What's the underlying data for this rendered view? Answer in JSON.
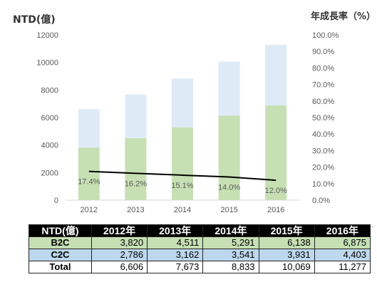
{
  "title_left": "NTD(億)",
  "title_right": "年成長率（%）",
  "chart_data": {
    "type": "bar",
    "stacked": true,
    "categories": [
      "2012",
      "2013",
      "2014",
      "2015",
      "2016"
    ],
    "series": [
      {
        "name": "B2C",
        "values": [
          3820,
          4511,
          5291,
          6138,
          6875
        ],
        "color": "#c6e0b4"
      },
      {
        "name": "C2C",
        "values": [
          2786,
          3162,
          3541,
          3931,
          4403
        ],
        "color": "#deebf7"
      }
    ],
    "line": {
      "values": [
        17.4,
        16.2,
        15.1,
        14.0,
        12.0
      ],
      "labels": [
        "17.4%",
        "16.2%",
        "15.1%",
        "14.0%",
        "12.0%"
      ],
      "color": "#000000"
    },
    "ylim": [
      0,
      12000
    ],
    "yticks": [
      "0",
      "2000",
      "4000",
      "6000",
      "8000",
      "10000",
      "12000"
    ],
    "y2lim": [
      0,
      100
    ],
    "y2ticks": [
      "0.0%",
      "10.0%",
      "20.0%",
      "30.0%",
      "40.0%",
      "50.0%",
      "60.0%",
      "70.0%",
      "80.0%",
      "90.0%",
      "100.0%"
    ]
  },
  "table": {
    "header": [
      "NTD(億)",
      "2012年",
      "2013年",
      "2014年",
      "2015年",
      "2016年"
    ],
    "rows": [
      {
        "label": "B2C",
        "values": [
          "3,820",
          "4,511",
          "5,291",
          "6,138",
          "6,875"
        ],
        "bg": "#c6e0b4"
      },
      {
        "label": "C2C",
        "values": [
          "2,786",
          "3,162",
          "3,541",
          "3,931",
          "4,403"
        ],
        "bg": "#bdd7ee"
      },
      {
        "label": "Total",
        "values": [
          "6,606",
          "7,673",
          "8,833",
          "10,069",
          "11,277"
        ],
        "bg": "#ffffff"
      }
    ]
  },
  "footnote_mark": "."
}
